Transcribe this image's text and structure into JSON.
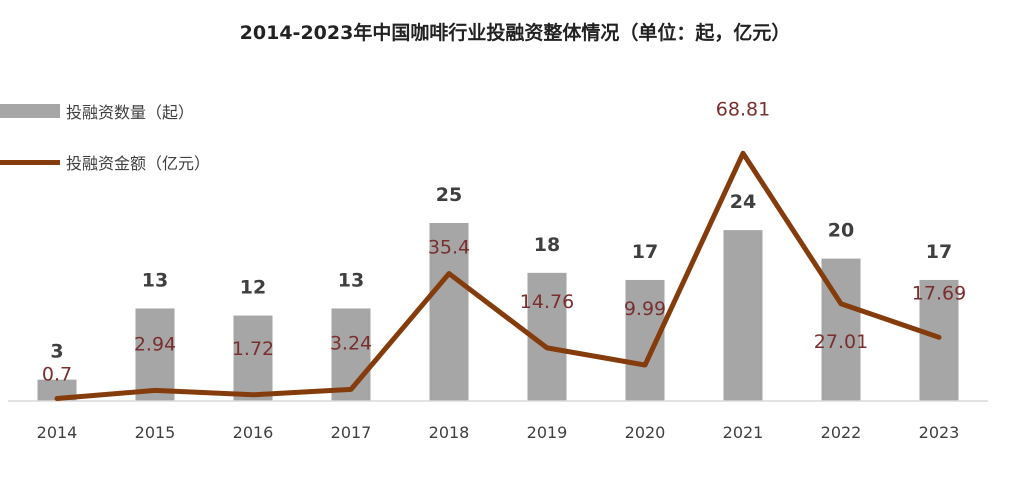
{
  "chart_data": {
    "type": "bar",
    "title": "2014-2023年中国咖啡行业投融资整体情况（单位：起，亿元）",
    "categories": [
      "2014",
      "2015",
      "2016",
      "2017",
      "2018",
      "2019",
      "2020",
      "2021",
      "2022",
      "2023"
    ],
    "series": [
      {
        "name": "投融资数量（起）",
        "type": "bar",
        "values": [
          3,
          13,
          12,
          13,
          25,
          18,
          17,
          24,
          20,
          17
        ],
        "color": "#a6a6a6",
        "value_label_color": "#3f3f3f"
      },
      {
        "name": "投融资金额（亿元）",
        "type": "line",
        "values": [
          0.7,
          2.94,
          1.72,
          3.24,
          35.4,
          14.76,
          9.99,
          68.81,
          27.01,
          17.69
        ],
        "color": "#843c0c",
        "value_label_color": "#7a2f2f"
      }
    ],
    "legend_position": "top-left",
    "grid": false
  }
}
